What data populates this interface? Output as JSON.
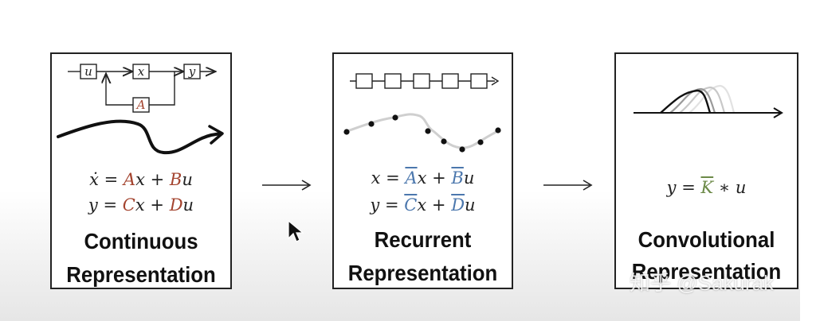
{
  "panels": {
    "continuous": {
      "block_labels": {
        "input": "u",
        "state": "x",
        "matrix": "A",
        "output": "y"
      },
      "eq1": {
        "lhs": "ẋ",
        "eq": "=",
        "a": "A",
        "x1": "x",
        "plus": "+",
        "b": "B",
        "u1": "u"
      },
      "eq2": {
        "lhs": "y",
        "eq": "=",
        "c": "C",
        "x1": "x",
        "plus": "+",
        "d": "D",
        "u1": "u"
      },
      "title_line1": "Continuous",
      "title_line2": "Representation"
    },
    "recurrent": {
      "eq1": {
        "lhs": "x",
        "eq": "=",
        "a": "A",
        "x1": "x",
        "plus": "+",
        "b": "B",
        "u1": "u"
      },
      "eq2": {
        "lhs": "y",
        "eq": "=",
        "c": "C",
        "x1": "x",
        "plus": "+",
        "d": "D",
        "u1": "u"
      },
      "title_line1": "Recurrent",
      "title_line2": "Representation"
    },
    "convolutional": {
      "eq1": {
        "lhs": "y",
        "eq": "=",
        "k": "K",
        "op": "∗",
        "u1": "u"
      },
      "title_line1": "Convolutional",
      "title_line2": "Representation"
    }
  },
  "watermark": "知乎 @Sakurak",
  "colors": {
    "red": "#a4442f",
    "blue": "#4b77ad",
    "green": "#6c8a48"
  }
}
